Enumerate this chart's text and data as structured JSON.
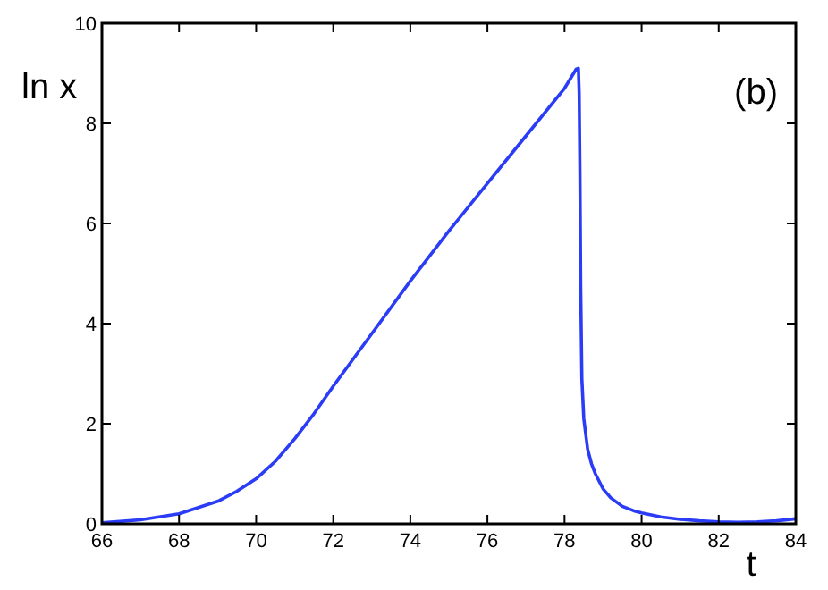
{
  "chart_data": {
    "type": "line",
    "ylabel": "ln x",
    "xlabel": "t",
    "annotations": [
      "(b)"
    ],
    "x": [
      66,
      67,
      68,
      69,
      69.5,
      70,
      70.5,
      71,
      71.5,
      72,
      73,
      74,
      75,
      76,
      77,
      78,
      78.3,
      78.36,
      78.38,
      78.4,
      78.42,
      78.45,
      78.5,
      78.6,
      78.7,
      78.8,
      79,
      79.2,
      79.5,
      79.8,
      80,
      80.5,
      81,
      81.5,
      82,
      82.5,
      83,
      83.5,
      84
    ],
    "series": [
      {
        "color": "#2a3cf5",
        "values": [
          0.02,
          0.08,
          0.2,
          0.45,
          0.65,
          0.9,
          1.25,
          1.7,
          2.2,
          2.75,
          3.8,
          4.85,
          5.85,
          6.8,
          7.75,
          8.7,
          9.08,
          9.1,
          8.6,
          7.0,
          4.7,
          2.9,
          2.1,
          1.49,
          1.2,
          1.0,
          0.7,
          0.52,
          0.35,
          0.26,
          0.22,
          0.14,
          0.09,
          0.06,
          0.04,
          0.03,
          0.04,
          0.06,
          0.1
        ]
      }
    ],
    "xlim": [
      66,
      84
    ],
    "ylim": [
      0,
      10
    ],
    "xticks": [
      66,
      68,
      70,
      72,
      74,
      76,
      78,
      80,
      82,
      84
    ],
    "yticks": [
      0,
      2,
      4,
      6,
      8,
      10
    ],
    "grid": false,
    "marker": "none",
    "line_style": "solid"
  }
}
